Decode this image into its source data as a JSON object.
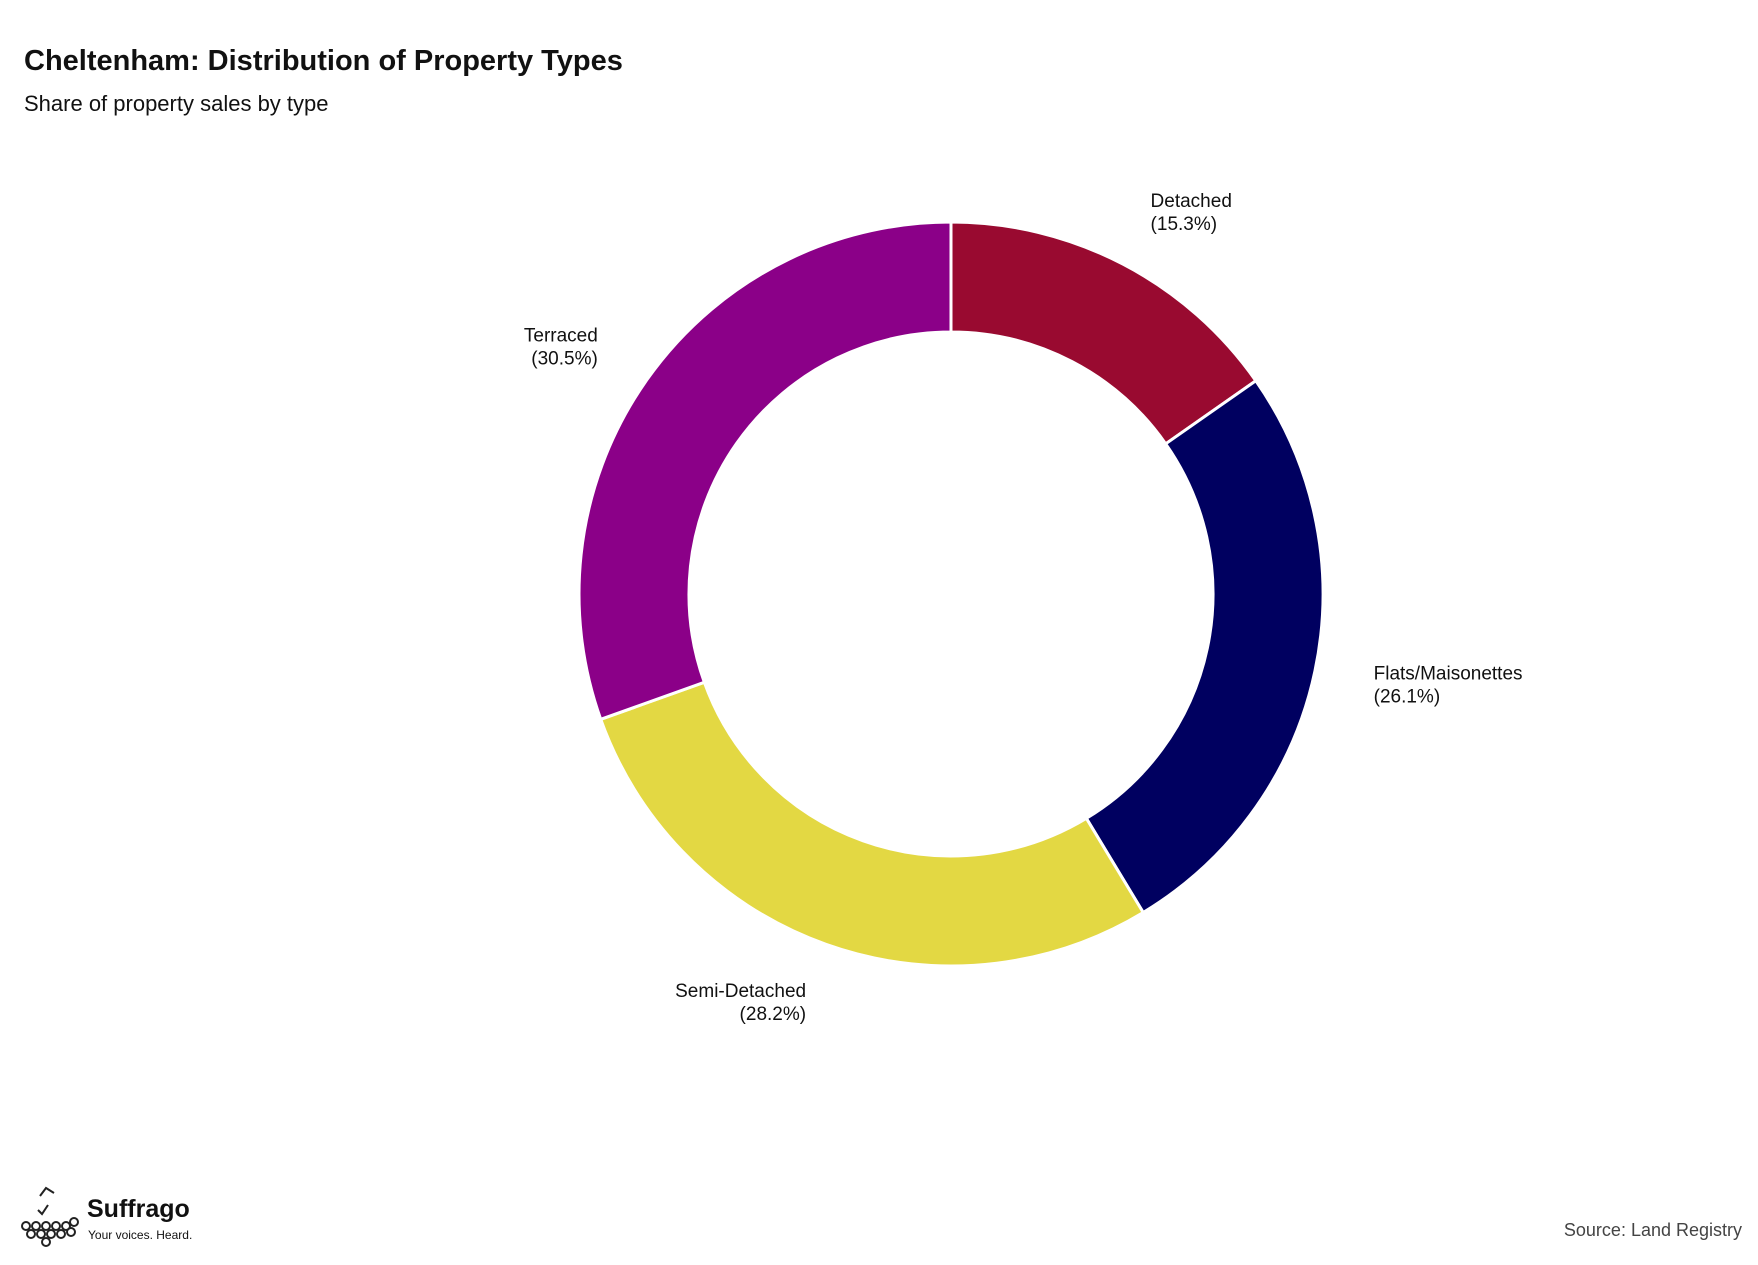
{
  "chart_data": {
    "type": "donut",
    "title": "Cheltenham: Distribution of Property Types",
    "subtitle": "Share of property sales by type",
    "categories": [
      "Detached",
      "Flats/Maisonettes",
      "Semi-Detached",
      "Terraced"
    ],
    "values": [
      15.3,
      26.1,
      28.2,
      30.5
    ],
    "value_labels": [
      "(15.3%)",
      "(26.1%)",
      "(28.2%)",
      "(30.5%)"
    ],
    "colors": [
      "#990a30",
      "#000060",
      "#e3d843",
      "#8b0088"
    ],
    "source": "Source: Land Registry"
  },
  "logo": {
    "name": "Suffrago",
    "tagline": "Your voices. Heard."
  }
}
